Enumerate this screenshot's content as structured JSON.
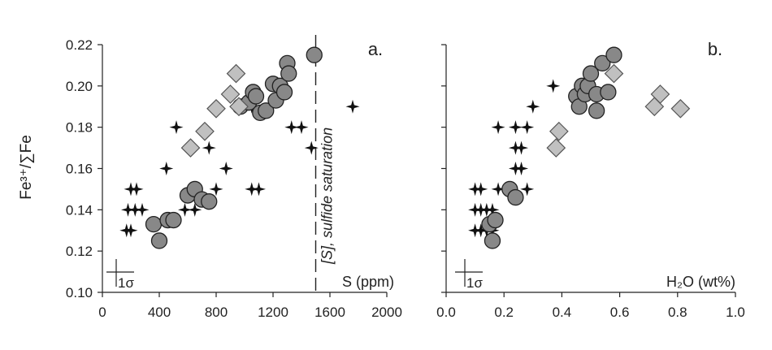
{
  "y_axis_label": "Fe³⁺/∑Fe",
  "chart_data": [
    {
      "type": "scatter",
      "panel_label": "a.",
      "xlim": [
        0,
        2000
      ],
      "ylim": [
        0.1,
        0.22
      ],
      "x_ticks": [
        0,
        400,
        800,
        1200,
        1600,
        2000
      ],
      "y_ticks": [
        0.1,
        0.12,
        0.14,
        0.16,
        0.18,
        0.2,
        0.22
      ],
      "x_tick_labels": [
        "0",
        "400",
        "800",
        "1200",
        "1600",
        "2000"
      ],
      "y_tick_labels": [
        "0.10",
        "0.12",
        "0.14",
        "0.16",
        "0.18",
        "0.20",
        "0.22"
      ],
      "xlabel_in_plot": "S (ppm)",
      "error_bar_label": "1σ",
      "reference_line": {
        "x": 1500,
        "style": "dashed",
        "label": "[S], sulfide saturation"
      },
      "series": [
        {
          "marker": "star",
          "color": "#111111",
          "points": [
            [
              170,
              0.13
            ],
            [
              200,
              0.13
            ],
            [
              180,
              0.14
            ],
            [
              230,
              0.14
            ],
            [
              280,
              0.14
            ],
            [
              200,
              0.15
            ],
            [
              240,
              0.15
            ],
            [
              450,
              0.16
            ],
            [
              520,
              0.18
            ],
            [
              580,
              0.14
            ],
            [
              650,
              0.14
            ],
            [
              750,
              0.17
            ],
            [
              800,
              0.15
            ],
            [
              870,
              0.16
            ],
            [
              1050,
              0.15
            ],
            [
              1100,
              0.15
            ],
            [
              1050,
              0.19
            ],
            [
              1250,
              0.2
            ],
            [
              1330,
              0.18
            ],
            [
              1400,
              0.18
            ],
            [
              1470,
              0.17
            ],
            [
              1760,
              0.19
            ]
          ]
        },
        {
          "marker": "circle",
          "color": "#888888",
          "points": [
            [
              360,
              0.133
            ],
            [
              400,
              0.125
            ],
            [
              460,
              0.135
            ],
            [
              500,
              0.135
            ],
            [
              600,
              0.147
            ],
            [
              650,
              0.15
            ],
            [
              700,
              0.145
            ],
            [
              750,
              0.144
            ],
            [
              970,
              0.19
            ],
            [
              1030,
              0.192
            ],
            [
              1060,
              0.197
            ],
            [
              1080,
              0.195
            ],
            [
              1110,
              0.187
            ],
            [
              1150,
              0.188
            ],
            [
              1200,
              0.201
            ],
            [
              1220,
              0.193
            ],
            [
              1250,
              0.2
            ],
            [
              1280,
              0.197
            ],
            [
              1300,
              0.211
            ],
            [
              1310,
              0.206
            ],
            [
              1490,
              0.215
            ]
          ]
        },
        {
          "marker": "diamond",
          "color": "#c0c0c0",
          "points": [
            [
              620,
              0.17
            ],
            [
              720,
              0.178
            ],
            [
              800,
              0.189
            ],
            [
              900,
              0.196
            ],
            [
              940,
              0.206
            ],
            [
              960,
              0.19
            ]
          ]
        }
      ]
    },
    {
      "type": "scatter",
      "panel_label": "b.",
      "xlim": [
        0.0,
        1.0
      ],
      "ylim": [
        0.1,
        0.22
      ],
      "x_ticks": [
        0.0,
        0.2,
        0.4,
        0.6,
        0.8,
        1.0
      ],
      "y_ticks": [
        0.1,
        0.12,
        0.14,
        0.16,
        0.18,
        0.2,
        0.22
      ],
      "x_tick_labels": [
        "0.0",
        "0.2",
        "0.4",
        "0.6",
        "0.8",
        "1.0"
      ],
      "xlabel_in_plot": "H₂O (wt%)",
      "error_bar_label": "1σ",
      "series": [
        {
          "marker": "star",
          "color": "#111111",
          "points": [
            [
              0.1,
              0.13
            ],
            [
              0.12,
              0.13
            ],
            [
              0.14,
              0.13
            ],
            [
              0.16,
              0.13
            ],
            [
              0.1,
              0.14
            ],
            [
              0.12,
              0.14
            ],
            [
              0.14,
              0.14
            ],
            [
              0.16,
              0.14
            ],
            [
              0.1,
              0.15
            ],
            [
              0.12,
              0.15
            ],
            [
              0.18,
              0.15
            ],
            [
              0.22,
              0.15
            ],
            [
              0.18,
              0.18
            ],
            [
              0.24,
              0.16
            ],
            [
              0.26,
              0.16
            ],
            [
              0.24,
              0.17
            ],
            [
              0.26,
              0.17
            ],
            [
              0.24,
              0.18
            ],
            [
              0.28,
              0.18
            ],
            [
              0.28,
              0.15
            ],
            [
              0.3,
              0.19
            ],
            [
              0.37,
              0.2
            ]
          ]
        },
        {
          "marker": "circle",
          "color": "#888888",
          "points": [
            [
              0.15,
              0.133
            ],
            [
              0.16,
              0.125
            ],
            [
              0.17,
              0.135
            ],
            [
              0.22,
              0.15
            ],
            [
              0.24,
              0.146
            ],
            [
              0.45,
              0.195
            ],
            [
              0.46,
              0.19
            ],
            [
              0.47,
              0.2
            ],
            [
              0.48,
              0.196
            ],
            [
              0.49,
              0.2
            ],
            [
              0.5,
              0.206
            ],
            [
              0.52,
              0.188
            ],
            [
              0.52,
              0.196
            ],
            [
              0.54,
              0.211
            ],
            [
              0.56,
              0.197
            ],
            [
              0.58,
              0.215
            ]
          ]
        },
        {
          "marker": "diamond",
          "color": "#c0c0c0",
          "points": [
            [
              0.38,
              0.17
            ],
            [
              0.39,
              0.178
            ],
            [
              0.58,
              0.206
            ],
            [
              0.72,
              0.19
            ],
            [
              0.74,
              0.196
            ],
            [
              0.81,
              0.189
            ]
          ]
        }
      ]
    }
  ]
}
